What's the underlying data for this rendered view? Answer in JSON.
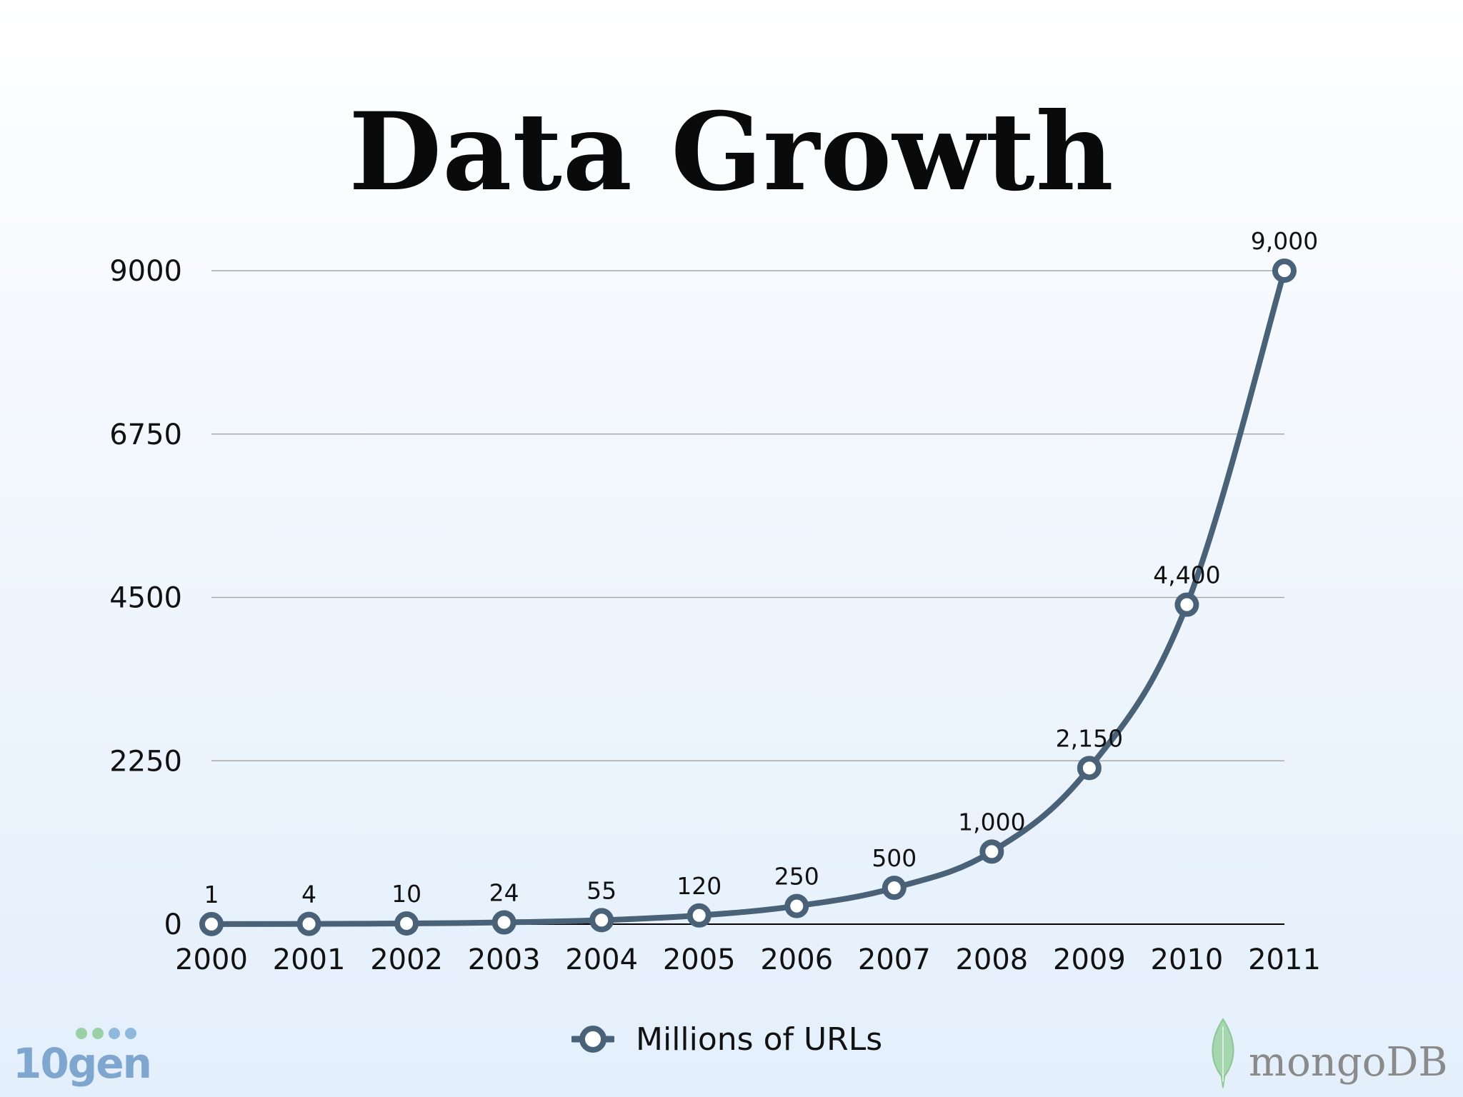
{
  "slide": {
    "title": "Data Growth",
    "logos": {
      "left": "10gen",
      "right": "mongoDB"
    }
  },
  "colors": {
    "series_line": "#4a6277",
    "gridline": "#a8a8a8",
    "axis": "#000000",
    "marker_fill": "#ffffff"
  },
  "chart_data": {
    "type": "line",
    "title": "Data Growth",
    "xlabel": "",
    "ylabel": "",
    "categories": [
      "2000",
      "2001",
      "2002",
      "2003",
      "2004",
      "2005",
      "2006",
      "2007",
      "2008",
      "2009",
      "2010",
      "2011"
    ],
    "series": [
      {
        "name": "Millions of URLs",
        "values": [
          1,
          4,
          10,
          24,
          55,
          120,
          250,
          500,
          1000,
          2150,
          4400,
          9000
        ],
        "labels": [
          "1",
          "4",
          "10",
          "24",
          "55",
          "120",
          "250",
          "500",
          "1,000",
          "2,150",
          "4,400",
          "9,000"
        ]
      }
    ],
    "yticks": [
      0,
      2250,
      4500,
      6750,
      9000
    ],
    "ylim": [
      0,
      9000
    ],
    "grid": true,
    "legend_position": "bottom-center",
    "smooth": true,
    "markers": "hollow-circle"
  }
}
